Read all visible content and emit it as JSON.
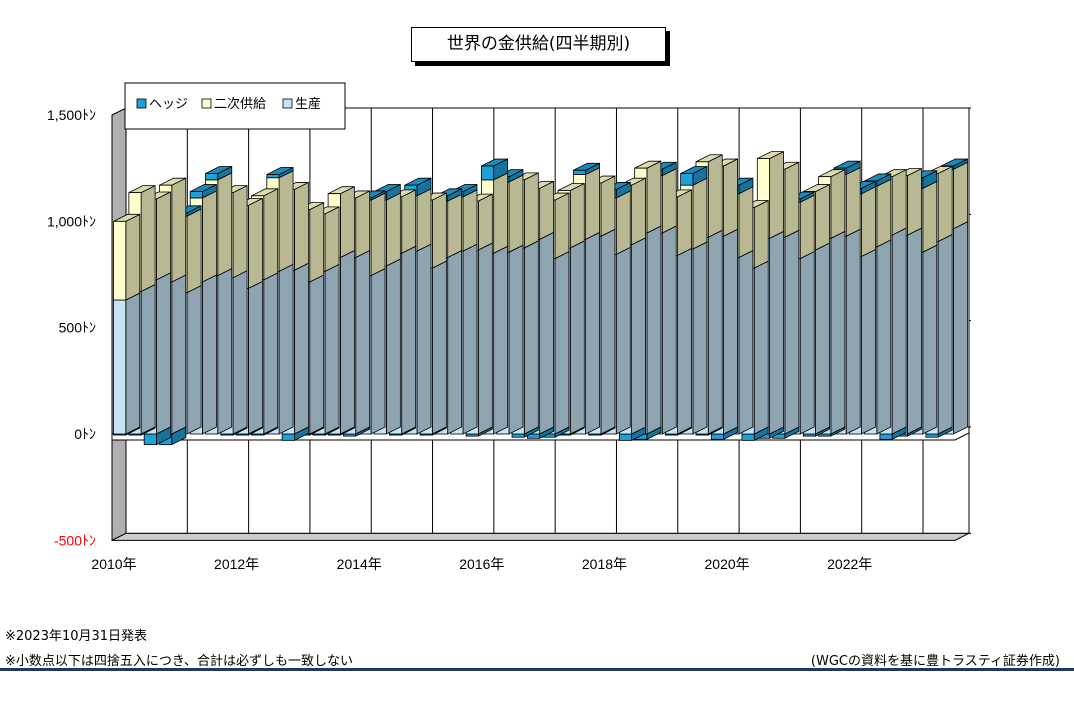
{
  "notes": {
    "release": "※2023年10月31日発表",
    "rounding": "※小数点以下は四捨五入につき、合計は必ずしも一致しない",
    "source": "(WGCの資料を基に豊トラスティ証券作成)"
  },
  "colors": {
    "production": "#c5e4f5",
    "recycling": "#ffffcc",
    "hedging": "#1ea0d8",
    "negative_label": "#ff0000",
    "footer_line": "#1f3864"
  },
  "chart_data": {
    "type": "bar",
    "stacked": true,
    "style": "3d",
    "title": "世界の金供給(四半期別)",
    "xlabel": "",
    "ylabel": "",
    "ylim": [
      -500,
      1500
    ],
    "yticks": [
      -500,
      0,
      500,
      1000,
      1500
    ],
    "ytick_labels": [
      "-500ﾄﾝ",
      "0ﾄﾝ",
      "500ﾄﾝ",
      "1,000ﾄﾝ",
      "1,500ﾄﾝ"
    ],
    "xtick_labels": [
      "2010年",
      "2012年",
      "2014年",
      "2016年",
      "2018年",
      "2020年",
      "2022年"
    ],
    "legend": {
      "position": "top-left",
      "entries": [
        "ヘッジ",
        "二次供給",
        "生産"
      ]
    },
    "gridlines": "vertical per year",
    "categories": [
      "2010Q1",
      "2010Q2",
      "2010Q3",
      "2010Q4",
      "2011Q1",
      "2011Q2",
      "2011Q3",
      "2011Q4",
      "2012Q1",
      "2012Q2",
      "2012Q3",
      "2012Q4",
      "2013Q1",
      "2013Q2",
      "2013Q3",
      "2013Q4",
      "2014Q1",
      "2014Q2",
      "2014Q3",
      "2014Q4",
      "2015Q1",
      "2015Q2",
      "2015Q3",
      "2015Q4",
      "2016Q1",
      "2016Q2",
      "2016Q3",
      "2016Q4",
      "2017Q1",
      "2017Q2",
      "2017Q3",
      "2017Q4",
      "2018Q1",
      "2018Q2",
      "2018Q3",
      "2018Q4",
      "2019Q1",
      "2019Q2",
      "2019Q3",
      "2019Q4",
      "2020Q1",
      "2020Q2",
      "2020Q3",
      "2020Q4",
      "2021Q1",
      "2021Q2",
      "2021Q3",
      "2021Q4",
      "2022Q1",
      "2022Q2",
      "2022Q3",
      "2022Q4",
      "2023Q1",
      "2023Q2",
      "2023Q3"
    ],
    "series": [
      {
        "name": "生産",
        "values": [
          630,
          670,
          725,
          715,
          665,
          715,
          745,
          735,
          685,
          725,
          765,
          770,
          715,
          765,
          830,
          830,
          745,
          790,
          850,
          860,
          780,
          830,
          860,
          865,
          850,
          855,
          875,
          915,
          825,
          875,
          915,
          930,
          845,
          890,
          945,
          945,
          840,
          870,
          925,
          930,
          830,
          780,
          920,
          925,
          825,
          865,
          920,
          930,
          835,
          880,
          935,
          935,
          855,
          905,
          965
        ]
      },
      {
        "name": "二次供給",
        "values": [
          370,
          465,
          380,
          455,
          360,
          395,
          450,
          400,
          390,
          395,
          440,
          380,
          340,
          270,
          300,
          280,
          355,
          310,
          265,
          260,
          320,
          265,
          255,
          230,
          345,
          330,
          320,
          240,
          275,
          270,
          305,
          250,
          265,
          280,
          305,
          270,
          275,
          300,
          355,
          330,
          300,
          285,
          375,
          320,
          265,
          275,
          290,
          290,
          295,
          285,
          275,
          280,
          300,
          320,
          280
        ]
      },
      {
        "name": "ヘッジ",
        "values": [
          -5,
          -5,
          -50,
          -50,
          15,
          30,
          30,
          -5,
          -5,
          -5,
          15,
          -30,
          -5,
          -5,
          -5,
          -10,
          10,
          40,
          -5,
          50,
          -5,
          25,
          25,
          -10,
          65,
          25,
          -15,
          -20,
          -15,
          -5,
          20,
          -5,
          40,
          -30,
          -25,
          30,
          -5,
          55,
          -5,
          -25,
          40,
          -30,
          -20,
          -20,
          15,
          -10,
          -10,
          30,
          25,
          25,
          -25,
          -10,
          50,
          -15,
          15
        ]
      }
    ]
  }
}
